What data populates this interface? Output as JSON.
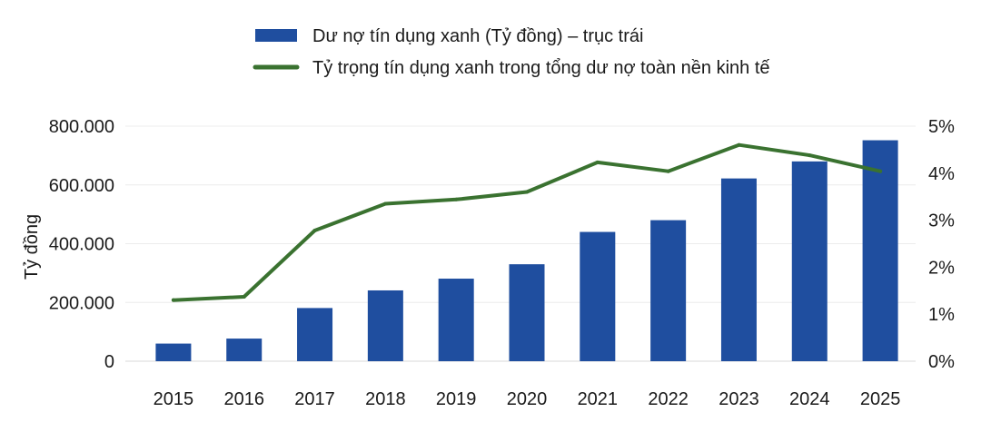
{
  "chart_data": {
    "type": "bar",
    "categories": [
      "2015",
      "2016",
      "2017",
      "2018",
      "2019",
      "2020",
      "2021",
      "2022",
      "2023",
      "2024",
      "2025"
    ],
    "series": [
      {
        "name": "Dư nợ tín dụng xanh (Tỷ đồng) – trục trái",
        "type": "bar",
        "axis": "left",
        "color": "#1f4e9f",
        "values": [
          60000,
          77000,
          181000,
          241000,
          281000,
          330000,
          440000,
          480000,
          622000,
          680000,
          752000
        ]
      },
      {
        "name": "Tỷ trọng tín dụng xanh trong tổng dư nợ toàn nền kinh tế",
        "type": "line",
        "axis": "right",
        "color": "#3a7230",
        "values": [
          1.3,
          1.37,
          2.78,
          3.35,
          3.44,
          3.6,
          4.23,
          4.04,
          4.6,
          4.38,
          4.04
        ]
      }
    ],
    "ylabel": "Tỷ đồng",
    "ylim": [
      0,
      800000
    ],
    "y_ticks": [
      0,
      200000,
      400000,
      600000,
      800000
    ],
    "y_tick_labels": [
      "0",
      "200.000",
      "400.000",
      "600.000",
      "800.000"
    ],
    "y2lim": [
      0,
      5
    ],
    "y2_ticks": [
      0,
      1,
      2,
      3,
      4,
      5
    ],
    "y2_tick_labels": [
      "0%",
      "1%",
      "2%",
      "3%",
      "4%",
      "5%"
    ],
    "grid": true,
    "legend_position": "top-center"
  }
}
